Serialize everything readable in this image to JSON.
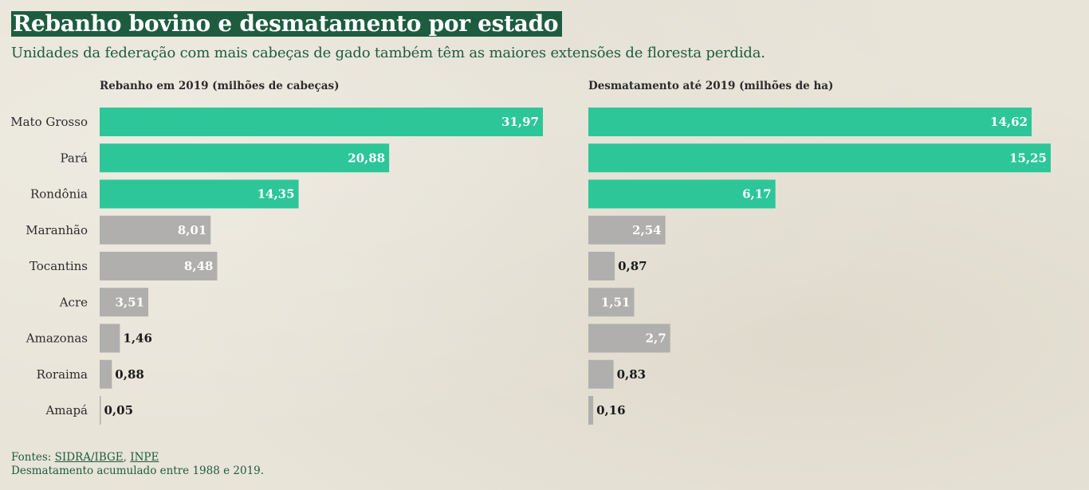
{
  "title": "Rebanho bovino e desmatamento por estado",
  "subtitle": "Unidades da federação com mais cabeças de gado também têm as maiores extensões de floresta perdida.",
  "colors": {
    "highlight": "#2dc698",
    "default": "#b0afad",
    "title_bg": "#1e5c3f"
  },
  "footer": {
    "sources_prefix": "Fontes: ",
    "source_1": "SIDRA/IBGE",
    "separator": ", ",
    "source_2": "INPE",
    "note": "Desmatamento acumulado entre 1988 e 2019."
  },
  "chart_data": [
    {
      "type": "bar",
      "orientation": "horizontal",
      "title": "Rebanho em 2019 (milhões de cabeças)",
      "categories": [
        "Mato Grosso",
        "Pará",
        "Rondônia",
        "Maranhão",
        "Tocantins",
        "Acre",
        "Amazonas",
        "Roraima",
        "Amapá"
      ],
      "values": [
        31.97,
        20.88,
        14.35,
        8.01,
        8.48,
        3.51,
        1.46,
        0.88,
        0.05
      ],
      "labels": [
        "31,97",
        "20,88",
        "14,35",
        "8,01",
        "8,48",
        "3,51",
        "1,46",
        "0,88",
        "0,05"
      ],
      "highlighted": [
        true,
        true,
        true,
        false,
        false,
        false,
        false,
        false,
        false
      ],
      "xlim": [
        0,
        31.97
      ],
      "grid": false
    },
    {
      "type": "bar",
      "orientation": "horizontal",
      "title": "Desmatamento até 2019 (milhões de ha)",
      "categories": [
        "Mato Grosso",
        "Pará",
        "Rondônia",
        "Maranhão",
        "Tocantins",
        "Acre",
        "Amazonas",
        "Roraima",
        "Amapá"
      ],
      "values": [
        14.62,
        15.25,
        6.17,
        2.54,
        0.87,
        1.51,
        2.7,
        0.83,
        0.16
      ],
      "labels": [
        "14,62",
        "15,25",
        "6,17",
        "2,54",
        "0,87",
        "1,51",
        "2,7",
        "0,83",
        "0,16"
      ],
      "highlighted": [
        true,
        true,
        true,
        false,
        false,
        false,
        false,
        false,
        false
      ],
      "xlim": [
        0,
        15.25
      ],
      "grid": false
    }
  ]
}
